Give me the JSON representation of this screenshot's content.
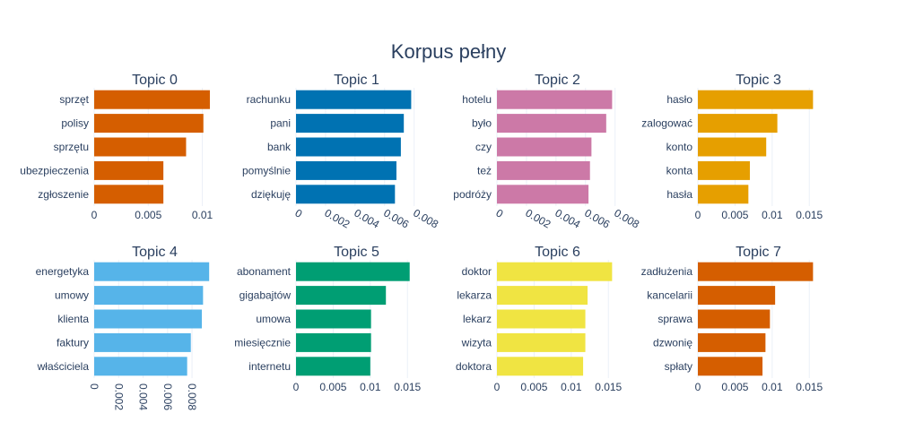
{
  "chart_data": {
    "type": "bar",
    "title": "Korpus pełny",
    "subplots": [
      {
        "title": "Topic 0",
        "color": "#D55E00",
        "categories": [
          "sprzęt",
          "polisy",
          "sprzętu",
          "ubezpieczenia",
          "zgłoszenie"
        ],
        "values": [
          0.0107,
          0.0101,
          0.0085,
          0.0064,
          0.0064
        ],
        "xlim": [
          0,
          0.0112
        ],
        "ticks": [
          0,
          0.005,
          0.01
        ],
        "tick_labels": [
          "0",
          "0.005",
          "0.01"
        ],
        "tick_rotation": 0
      },
      {
        "title": "Topic 1",
        "color": "#0072B2",
        "categories": [
          "rachunku",
          "pani",
          "bank",
          "pomyślnie",
          "dziękuję"
        ],
        "values": [
          0.0078,
          0.0073,
          0.0071,
          0.0068,
          0.0067
        ],
        "xlim": [
          0,
          0.0082
        ],
        "ticks": [
          0,
          0.002,
          0.004,
          0.006,
          0.008
        ],
        "tick_labels": [
          "0",
          "0.002",
          "0.004",
          "0.006",
          "0.008"
        ],
        "tick_rotation": 30
      },
      {
        "title": "Topic 2",
        "color": "#CC79A7",
        "categories": [
          "hotelu",
          "było",
          "czy",
          "też",
          "podróży"
        ],
        "values": [
          0.0078,
          0.0074,
          0.0064,
          0.0063,
          0.0062
        ],
        "xlim": [
          0,
          0.0082
        ],
        "ticks": [
          0,
          0.002,
          0.004,
          0.006,
          0.008
        ],
        "tick_labels": [
          "0",
          "0.002",
          "0.004",
          "0.006",
          "0.008"
        ],
        "tick_rotation": 30
      },
      {
        "title": "Topic 3",
        "color": "#E69F00",
        "categories": [
          "hasło",
          "zalogować",
          "konto",
          "konta",
          "hasła"
        ],
        "values": [
          0.0155,
          0.0107,
          0.0092,
          0.007,
          0.0068
        ],
        "xlim": [
          0,
          0.0163
        ],
        "ticks": [
          0,
          0.005,
          0.01,
          0.015
        ],
        "tick_labels": [
          "0",
          "0.005",
          "0.01",
          "0.015"
        ],
        "tick_rotation": 0
      },
      {
        "title": "Topic 4",
        "color": "#56B4E9",
        "categories": [
          "energetyka",
          "umowy",
          "klienta",
          "faktury",
          "właściciela"
        ],
        "values": [
          0.0094,
          0.0089,
          0.0088,
          0.0079,
          0.0076
        ],
        "xlim": [
          0,
          0.0099
        ],
        "ticks": [
          0,
          0.002,
          0.004,
          0.006,
          0.008
        ],
        "tick_labels": [
          "0",
          "0.002",
          "0.004",
          "0.006",
          "0.008"
        ],
        "tick_rotation": 90
      },
      {
        "title": "Topic 5",
        "color": "#009E73",
        "categories": [
          "abonament",
          "gigabajtów",
          "umowa",
          "miesięcznie",
          "internetu"
        ],
        "values": [
          0.0153,
          0.0121,
          0.0101,
          0.0101,
          0.01
        ],
        "xlim": [
          0,
          0.0163
        ],
        "ticks": [
          0,
          0.005,
          0.01,
          0.015
        ],
        "tick_labels": [
          "0",
          "0.005",
          "0.01",
          "0.015"
        ],
        "tick_rotation": 0
      },
      {
        "title": "Topic 6",
        "color": "#F0E442",
        "categories": [
          "doktor",
          "lekarza",
          "lekarz",
          "wizyta",
          "doktora"
        ],
        "values": [
          0.0155,
          0.0122,
          0.0119,
          0.0119,
          0.0116
        ],
        "xlim": [
          0,
          0.0163
        ],
        "ticks": [
          0,
          0.005,
          0.01,
          0.015
        ],
        "tick_labels": [
          "0",
          "0.005",
          "0.01",
          "0.015"
        ],
        "tick_rotation": 0
      },
      {
        "title": "Topic 7",
        "color": "#D55E00",
        "categories": [
          "zadłużenia",
          "kancelarii",
          "sprawa",
          "dzwonię",
          "spłaty"
        ],
        "values": [
          0.0155,
          0.0104,
          0.0097,
          0.0091,
          0.0087
        ],
        "xlim": [
          0,
          0.0163
        ],
        "ticks": [
          0,
          0.005,
          0.01,
          0.015
        ],
        "tick_labels": [
          "0",
          "0.005",
          "0.01",
          "0.015"
        ],
        "tick_rotation": 0
      }
    ]
  }
}
